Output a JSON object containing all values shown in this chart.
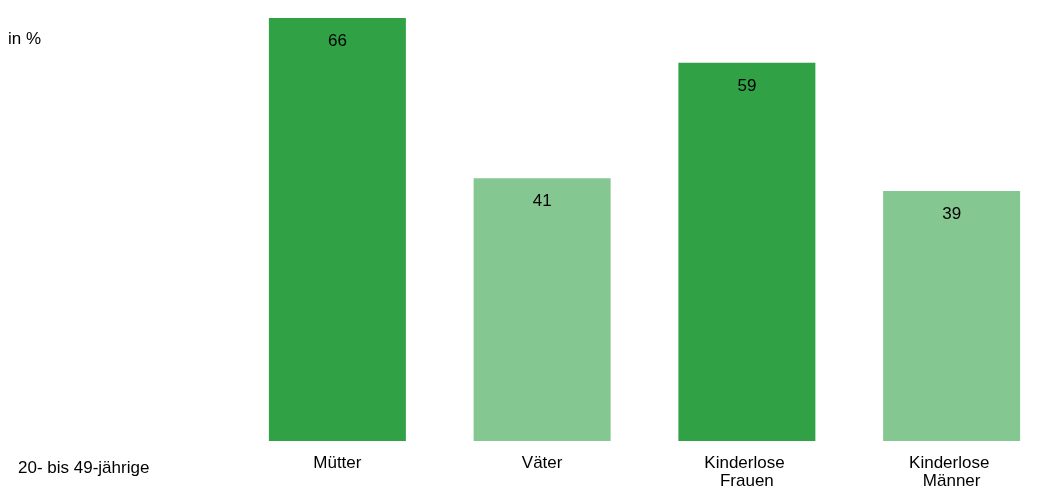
{
  "chart_data": {
    "type": "bar",
    "annotations": [
      "in %",
      "20- bis 49-jährige"
    ],
    "categories": [
      "Mütter",
      "Väter",
      "Kinderlose Frauen",
      "Kinderlose Männer"
    ],
    "values": [
      66,
      41,
      59,
      39
    ],
    "colors": [
      "#31a146",
      "#85c791",
      "#31a146",
      "#85c791"
    ],
    "ylim": [
      0,
      66
    ],
    "data_labels": true,
    "tick_labels": "x",
    "grid": false
  }
}
